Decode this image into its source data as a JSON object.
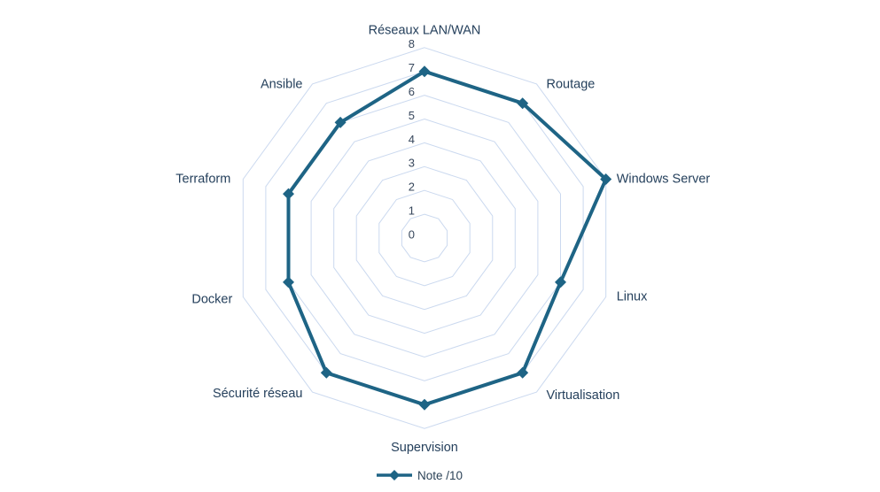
{
  "chart_data": {
    "type": "radar",
    "title": "",
    "categories": [
      "Réseaux LAN/WAN",
      "Routage",
      "Windows Server",
      "Linux",
      "Virtualisation",
      "Supervision",
      "Sécurité réseau",
      "Docker",
      "Terraform",
      "Ansible"
    ],
    "series": [
      {
        "name": "Note /10",
        "values": [
          7,
          7,
          8,
          6,
          7,
          7,
          7,
          6,
          6,
          6
        ]
      }
    ],
    "axis": {
      "min": 0,
      "max": 8,
      "tick_interval": 1,
      "tick_labels": [
        "0",
        "1",
        "2",
        "3",
        "4",
        "5",
        "6",
        "7",
        "8"
      ]
    },
    "grid": true,
    "legend_position": "bottom",
    "colors": {
      "series": "#1E6485",
      "grid": "#CBD9EF",
      "category_text": "#25405C",
      "tick_text": "#37475C",
      "background": "#FFFFFF"
    }
  },
  "legend": {
    "label": "Note /10"
  }
}
